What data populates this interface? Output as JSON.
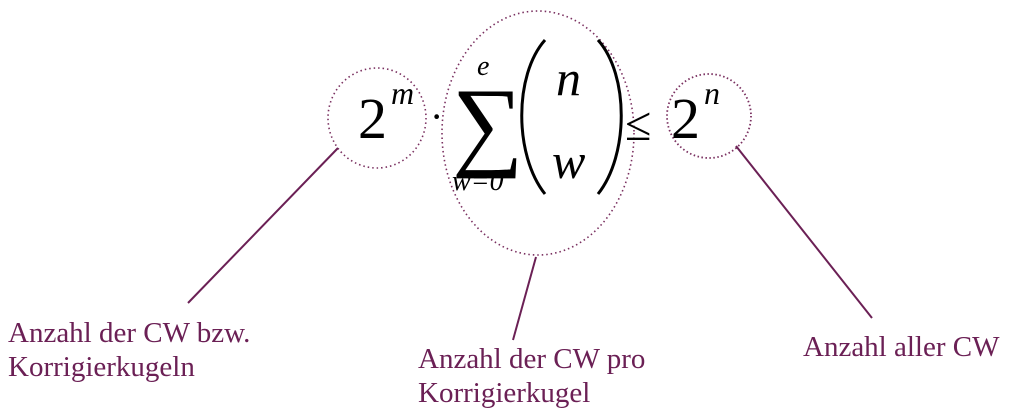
{
  "formula": {
    "two_m_base": "2",
    "two_m_exp": "m",
    "dot": "·",
    "sum_upper": "e",
    "sum_lower": "w=0",
    "binom_top": "n",
    "binom_bottom": "w",
    "leq": "≤",
    "two_n_base": "2",
    "two_n_exp": "n"
  },
  "annotations": {
    "left": {
      "line1": "Anzahl der CW bzw.",
      "line2": "Korrigierkugeln"
    },
    "middle": {
      "line1": "Anzahl der CW pro",
      "line2": "Korrigierkugel"
    },
    "right": {
      "line1": "Anzahl aller CW"
    }
  },
  "colors": {
    "annotation": "#6b2055",
    "formula": "#000000",
    "ellipse_stroke": "#7a3060"
  }
}
